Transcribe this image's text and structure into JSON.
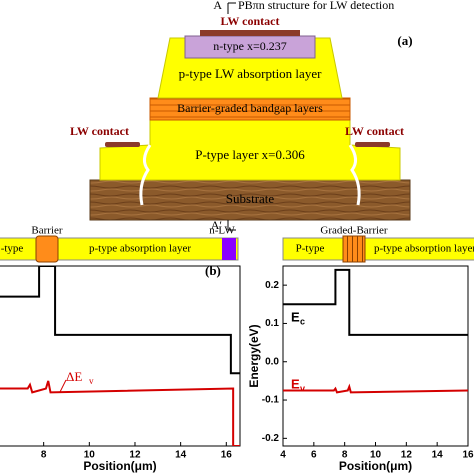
{
  "diagram": {
    "cut_top": "A",
    "cut_bottom": "A′",
    "title": "PBπn structure for LW detection",
    "panel_label": "(a)",
    "top_contact": "LW contact",
    "n_layer": "n-type x=0.237",
    "absorption": "p-type LW absorption layer",
    "barrier": "Barrier-graded bandgap layers",
    "p_layer": "P-type layer x=0.306",
    "left_contact": "LW contact",
    "right_contact": "LW contact",
    "substrate": "Substrate"
  },
  "chart_data": [
    {
      "type": "line",
      "panel_label": "(b)",
      "x_label": "Position(μm)",
      "layer_labels": [
        "-type",
        "Barrier",
        "p-type absorption layer",
        "n-LW"
      ],
      "annotation": "ΔE",
      "annotation_sub": "v",
      "xlim": [
        6,
        16.6
      ],
      "ylim": [
        -0.22,
        0.25
      ],
      "xticks": [
        8,
        10,
        12,
        14,
        16
      ],
      "series": [
        {
          "color": "#000000",
          "x": [
            6,
            7.8,
            7.8,
            8.5,
            8.5,
            16.2,
            16.2,
            16.6
          ],
          "values": [
            0.17,
            0.17,
            0.25,
            0.25,
            0.07,
            0.07,
            -0.03,
            -0.03
          ]
        },
        {
          "color": "#d40000",
          "x": [
            6,
            7.3,
            7.4,
            7.5,
            8.1,
            8.2,
            8.3,
            16.3,
            16.3,
            16.6
          ],
          "values": [
            -0.07,
            -0.07,
            -0.06,
            -0.08,
            -0.07,
            -0.05,
            -0.08,
            -0.07,
            -0.22,
            -0.22
          ]
        }
      ]
    },
    {
      "type": "line",
      "x_label": "Position(μm)",
      "y_label": "Energy(eV)",
      "layer_labels": [
        "P-type",
        "Graded-Barrier",
        "p-type absorption layer"
      ],
      "ec_label": "E",
      "ec_sub": "c",
      "ev_label": "E",
      "ev_sub": "v",
      "xlim": [
        4,
        16
      ],
      "ylim": [
        -0.22,
        0.25
      ],
      "xticks": [
        4,
        6,
        8,
        10,
        12,
        14,
        16
      ],
      "yticks": [
        0.2,
        0.1,
        {
          "value": 0,
          "label": "0.0"
        },
        -0.1,
        -0.2
      ],
      "series": [
        {
          "color": "#000000",
          "x": [
            4,
            7.4,
            7.4,
            8.3,
            8.3,
            16
          ],
          "values": [
            0.15,
            0.15,
            0.24,
            0.24,
            0.07,
            0.07
          ]
        },
        {
          "color": "#d40000",
          "x": [
            4,
            7.3,
            7.4,
            7.5,
            8.2,
            8.3,
            8.4,
            16
          ],
          "values": [
            -0.075,
            -0.075,
            -0.07,
            -0.08,
            -0.075,
            -0.065,
            -0.08,
            -0.075
          ]
        }
      ]
    }
  ]
}
